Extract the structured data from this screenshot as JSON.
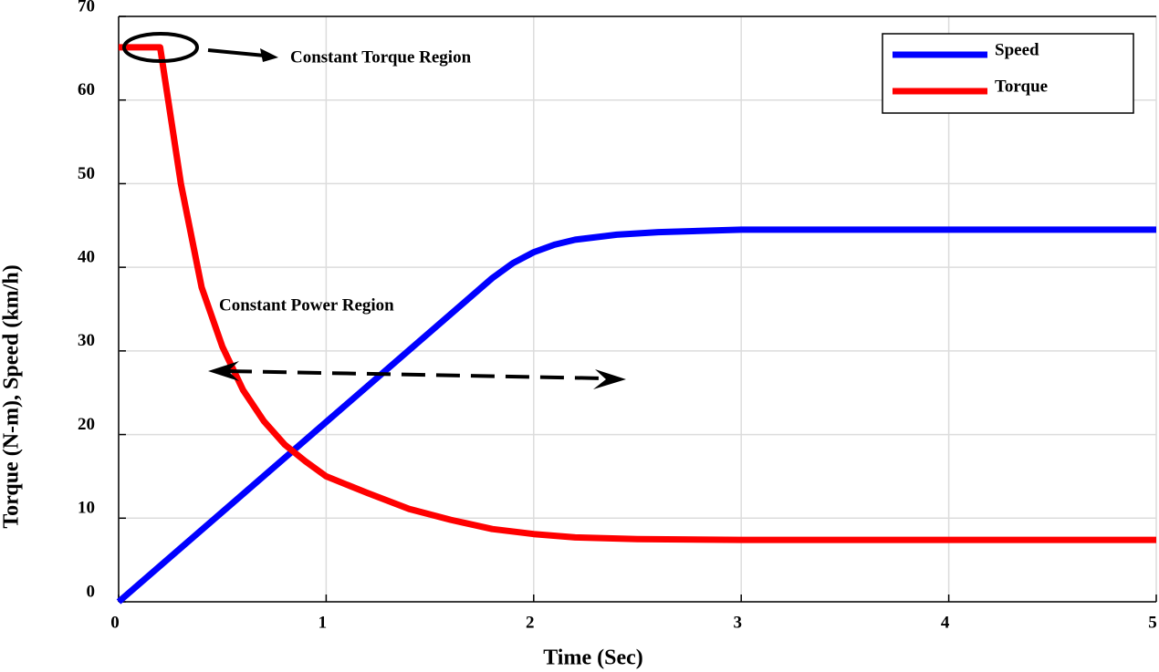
{
  "chart_data": {
    "type": "line",
    "xlabel": "Time (Sec)",
    "ylabel": "Torque (N-m), Speed (km/h)",
    "xlim": [
      0,
      5
    ],
    "xticks": [
      0,
      1,
      2,
      3,
      4,
      5
    ],
    "ylim": [
      0,
      70
    ],
    "yticks": [
      0,
      10,
      20,
      30,
      40,
      50,
      60,
      70
    ],
    "grid": true,
    "legend": "upper right",
    "annotations": [
      "Constant Torque Region",
      "Constant Power Region"
    ],
    "series": [
      {
        "name": "Speed",
        "color": "#0000ff",
        "x": [
          0,
          1.0,
          1.8,
          1.9,
          2.0,
          2.1,
          2.2,
          2.4,
          2.6,
          3.0,
          5.0
        ],
        "values": [
          0,
          21.5,
          38.7,
          40.5,
          41.8,
          42.7,
          43.3,
          43.9,
          44.2,
          44.5,
          44.5
        ]
      },
      {
        "name": "Torque",
        "color": "#ff0000",
        "x": [
          0,
          0.2,
          0.3,
          0.4,
          0.5,
          0.6,
          0.7,
          0.8,
          0.9,
          1.0,
          1.2,
          1.4,
          1.6,
          1.8,
          2.0,
          2.2,
          2.5,
          3.0,
          5.0
        ],
        "values": [
          66.3,
          66.3,
          50,
          37.6,
          30.5,
          25.3,
          21.6,
          18.8,
          16.8,
          15,
          13,
          11.1,
          9.8,
          8.7,
          8.1,
          7.7,
          7.5,
          7.4,
          7.4
        ]
      }
    ]
  }
}
